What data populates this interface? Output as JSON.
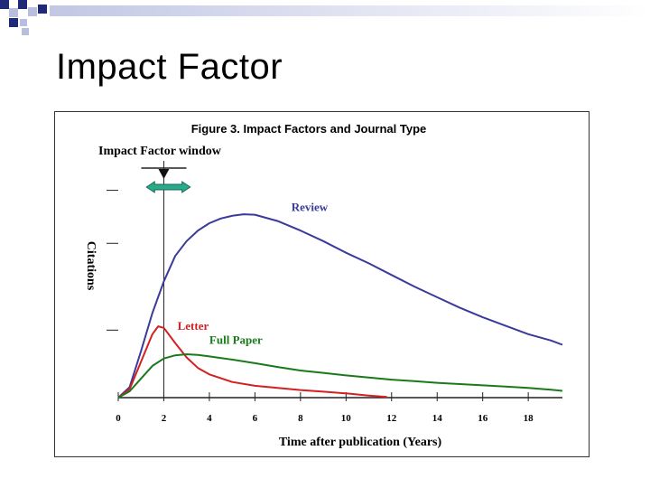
{
  "slide": {
    "title": "Impact Factor"
  },
  "colors": {
    "review": "#3a3a9a",
    "letter": "#d42020",
    "full_paper": "#1a7a1a",
    "window_arrow": "#2aaa88",
    "deco_dark": "#1e2a78",
    "deco_light": "#b8bede"
  },
  "chart_data": {
    "type": "line",
    "title": "Figure 3. Impact Factors and Journal Type",
    "xlabel": "Time after publication (Years)",
    "ylabel": "Citations",
    "xlim": [
      0,
      19.5
    ],
    "ylim": [
      0,
      100
    ],
    "x_ticks": [
      0,
      2,
      4,
      6,
      8,
      10,
      12,
      14,
      16,
      18
    ],
    "x_tick_labels": [
      "0",
      "2",
      "4",
      "6",
      "8",
      "10",
      "12",
      "14",
      "16",
      "18"
    ],
    "annotation": {
      "label": "Impact Factor window",
      "x_start": 1,
      "x_end": 3,
      "marker_x": 2
    },
    "series": [
      {
        "name": "Review",
        "label": "Review",
        "x": [
          0,
          0.5,
          1,
          1.5,
          2,
          2.5,
          3,
          3.5,
          4,
          4.5,
          5,
          5.5,
          6,
          7,
          8,
          9,
          10,
          11,
          12,
          13,
          14,
          15,
          16,
          17,
          18,
          19,
          19.5
        ],
        "y": [
          0,
          5,
          22,
          40,
          55,
          67,
          74,
          79,
          82.5,
          84.7,
          86,
          86.7,
          86.5,
          83.5,
          79,
          74,
          68.5,
          63.5,
          58,
          52.5,
          47.5,
          42.5,
          38,
          34,
          30,
          27,
          25
        ]
      },
      {
        "name": "Letter",
        "label": "Letter",
        "x": [
          0,
          0.5,
          1,
          1.5,
          1.75,
          2,
          2.5,
          3,
          3.5,
          4,
          5,
          6,
          7,
          8,
          9,
          10,
          11,
          11.8
        ],
        "y": [
          0,
          4,
          17,
          30,
          33.7,
          33,
          25.8,
          19,
          14,
          11,
          7.4,
          5.6,
          4.6,
          3.6,
          2.8,
          2,
          1,
          0.3
        ]
      },
      {
        "name": "Full Paper",
        "label": "Full Paper",
        "x": [
          0,
          0.5,
          1,
          1.5,
          2,
          2.5,
          3,
          3.5,
          4,
          5,
          6,
          7,
          8,
          9,
          10,
          11,
          12,
          13,
          14,
          15,
          16,
          17,
          18,
          19,
          19.5
        ],
        "y": [
          0,
          3,
          9,
          15,
          18.5,
          20,
          20.5,
          20.2,
          19.5,
          18,
          16.3,
          14.5,
          12.8,
          11.7,
          10.5,
          9.5,
          8.5,
          7.8,
          7,
          6.4,
          5.8,
          5.2,
          4.6,
          3.7,
          3.2
        ]
      }
    ]
  }
}
